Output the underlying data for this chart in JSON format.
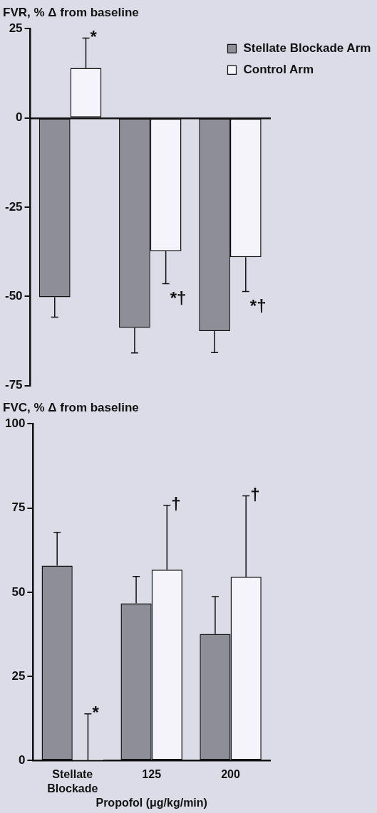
{
  "chart_data": [
    {
      "type": "bar",
      "title": "FVR, % Δ from baseline",
      "categories": [
        null,
        null,
        null
      ],
      "series": [
        {
          "name": "Stellate Blockade Arm",
          "color": "#8e8e98",
          "values": [
            -50.2,
            -58.8,
            -59.7
          ],
          "errors": [
            [
              -55.8,
              -50.2
            ],
            [
              -65.8,
              -58.8
            ],
            [
              -65.7,
              -59.7
            ]
          ]
        },
        {
          "name": "Control Arm",
          "color": "#f4f4fa",
          "values": [
            14,
            -37.3,
            -39
          ],
          "errors": [
            [
              14,
              22.4
            ],
            [
              -46.4,
              -37.3
            ],
            [
              -48.6,
              -39
            ]
          ]
        }
      ],
      "ylim": [
        -75,
        25
      ],
      "yticks": [
        -75,
        -50,
        -25,
        0,
        25
      ],
      "legend": "top right",
      "tick_labels": "y",
      "annotations": [
        "*",
        "*†",
        "*†"
      ]
    },
    {
      "type": "bar",
      "title": "FVC, % Δ from baseline",
      "categories": [
        "Stellate Blockade",
        "125",
        "200"
      ],
      "xlabel": "Propofol (μg/kg/min)",
      "series": [
        {
          "color": "#8e8e98",
          "values": [
            57.9,
            46.7,
            37.6
          ],
          "errors": [
            [
              57.9,
              67.8
            ],
            [
              46.7,
              54.7
            ],
            [
              37.6,
              48.7
            ]
          ]
        },
        {
          "color": "#f4f4fa",
          "values": [
            0,
            56.7,
            54.6
          ],
          "errors": [
            [
              0,
              13.9
            ],
            [
              56.7,
              75.8
            ],
            [
              54.6,
              78.6
            ]
          ]
        }
      ],
      "ylim": [
        0,
        100
      ],
      "yticks": [
        0,
        25,
        50,
        75,
        100
      ],
      "annotations": [
        "*",
        "†",
        "†"
      ]
    }
  ]
}
